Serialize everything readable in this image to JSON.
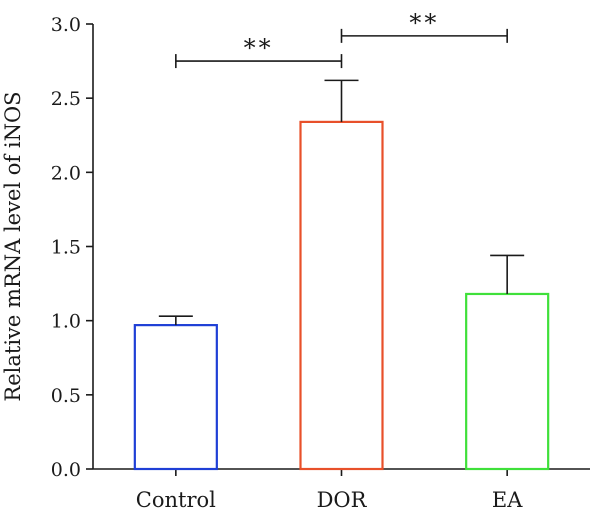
{
  "chart_data": {
    "type": "bar",
    "categories": [
      "Control",
      "DOR",
      "EA"
    ],
    "values": [
      0.97,
      2.34,
      1.18
    ],
    "error_upper": [
      1.03,
      2.62,
      1.44
    ],
    "colors": [
      "#1f3fd6",
      "#e8502a",
      "#3fe03a"
    ],
    "xlabel": "",
    "ylabel": "Relative mRNA level of iNOS",
    "ylim": [
      0,
      3.0
    ],
    "yticks": [
      0.0,
      0.5,
      1.0,
      1.5,
      2.0,
      2.5,
      3.0
    ],
    "ytick_labels": [
      "0.0",
      "0.5",
      "1.0",
      "1.5",
      "2.0",
      "2.5",
      "3.0"
    ],
    "grid": false,
    "significance": [
      {
        "from": "Control",
        "to": "DOR",
        "label": "**",
        "y": 2.75
      },
      {
        "from": "DOR",
        "to": "EA",
        "label": "**",
        "y": 2.92
      }
    ]
  }
}
